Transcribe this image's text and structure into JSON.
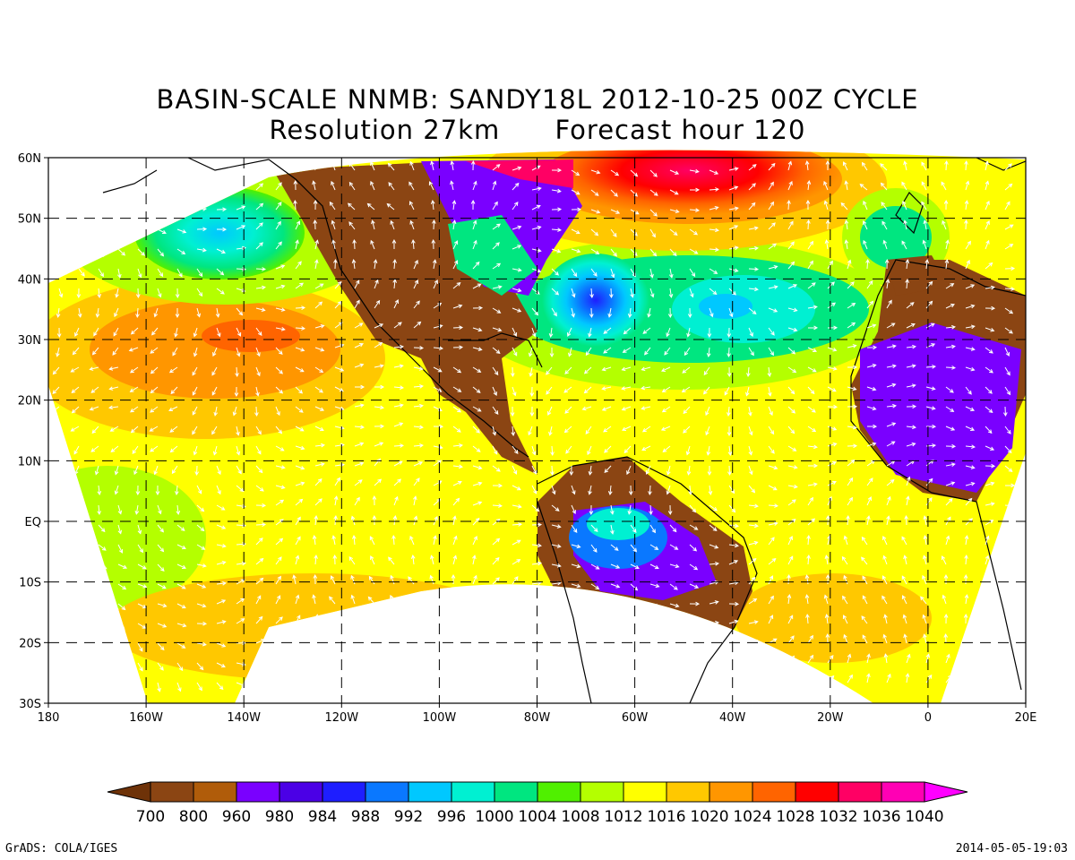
{
  "title": {
    "line1": "BASIN-SCALE NNMB: SANDY18L 2012-10-25 00Z CYCLE",
    "line2": "Resolution 27km      Forecast hour 120"
  },
  "map": {
    "lat_labels": [
      "60N",
      "50N",
      "40N",
      "30N",
      "20N",
      "10N",
      "EQ",
      "10S",
      "20S",
      "30S"
    ],
    "lon_labels": [
      "180",
      "160W",
      "140W",
      "120W",
      "100W",
      "80W",
      "60W",
      "40W",
      "20W",
      "0",
      "20E"
    ],
    "extent": {
      "lon_min": -180,
      "lon_max": 20,
      "lat_min": -30,
      "lat_max": 60
    }
  },
  "colorbar": {
    "levels": [
      "700",
      "800",
      "960",
      "980",
      "984",
      "988",
      "992",
      "996",
      "1000",
      "1004",
      "1008",
      "1012",
      "1016",
      "1020",
      "1024",
      "1028",
      "1032",
      "1036",
      "1040"
    ],
    "colors": [
      "#6e3208",
      "#8b4513",
      "#b05c0a",
      "#7a00ff",
      "#4b00e6",
      "#1e1eff",
      "#0a78ff",
      "#00c8ff",
      "#00f0d2",
      "#00e680",
      "#50f000",
      "#b4ff00",
      "#ffff00",
      "#ffc800",
      "#ff9600",
      "#ff6400",
      "#ff0000",
      "#ff0064",
      "#ff00b4",
      "#ff00ff"
    ]
  },
  "footer": {
    "left": "GrADS: COLA/IGES",
    "right": "2014-05-05-19:03"
  }
}
